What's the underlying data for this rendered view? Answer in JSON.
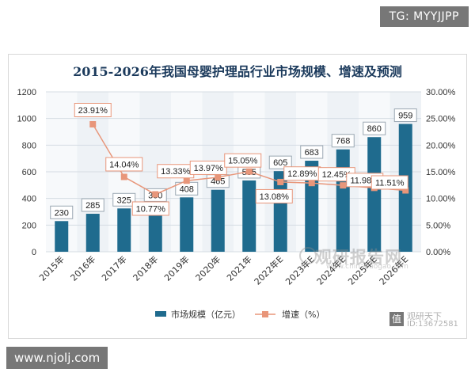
{
  "top_tag": "TG: MYYJJPP",
  "bottom_tag": "www.njolj.com",
  "watermarks": {
    "main": "观研报告网",
    "sub": "www.chinabaogao.com",
    "brand_icon": "值",
    "brand_name": "观研天下",
    "brand_id": "ID:13672581"
  },
  "colors": {
    "bar": "#1f6b8e",
    "line": "#e8967a",
    "label_border": "#e8967a",
    "title": "#1b3a5c"
  },
  "chart_data": {
    "type": "bar",
    "title": "2015-2026年我国母婴护理品行业市场规模、增速及预测",
    "categories": [
      "2015年",
      "2016年",
      "2017年",
      "2018年",
      "2019年",
      "2020年",
      "2021年",
      "2022年E",
      "2023年E",
      "2024年E",
      "2025年E",
      "2026年E"
    ],
    "bar_series": {
      "name": "市场规模（亿元）",
      "values": [
        230,
        285,
        325,
        360,
        408,
        465,
        535,
        605,
        683,
        768,
        860,
        959
      ],
      "labels": [
        "230",
        "285",
        "325",
        "360",
        "408",
        "465",
        "535",
        "605",
        "683",
        "768",
        "860",
        "959"
      ]
    },
    "line_series": {
      "name": "增速（%）",
      "points": [
        {
          "category_index": 1,
          "value": 23.91,
          "label": "23.91%"
        },
        {
          "category_index": 2,
          "value": 14.04,
          "label": "14.04%"
        },
        {
          "category_index": 3,
          "value": 10.77,
          "label": "10.77%"
        },
        {
          "category_index": 4,
          "value": 13.33,
          "label": "13.33%"
        },
        {
          "category_index": 5,
          "value": 13.97,
          "label": "13.97%"
        },
        {
          "category_index": 6,
          "value": 15.05,
          "label": "15.05%"
        },
        {
          "category_index": 7,
          "value": 13.08,
          "label": "13.08%"
        },
        {
          "category_index": 8,
          "value": 12.89,
          "label": "12.89%"
        },
        {
          "category_index": 9,
          "value": 12.45,
          "label": "12.45%"
        },
        {
          "category_index": 10,
          "value": 11.98,
          "label": "11.98%"
        },
        {
          "category_index": 11,
          "value": 11.51,
          "label": "11.51%"
        }
      ]
    },
    "y_left": {
      "min": 0,
      "max": 1200,
      "step": 200,
      "ticks": [
        "0",
        "200",
        "400",
        "600",
        "800",
        "1000",
        "1200"
      ]
    },
    "y_right": {
      "min": 0,
      "max": 30,
      "step": 5,
      "ticks": [
        "0.00%",
        "5.00%",
        "10.00%",
        "15.00%",
        "20.00%",
        "25.00%",
        "30.00%"
      ]
    },
    "legend": {
      "bar": "市场规模（亿元）",
      "line": "增速（%）",
      "position": "bottom"
    }
  }
}
